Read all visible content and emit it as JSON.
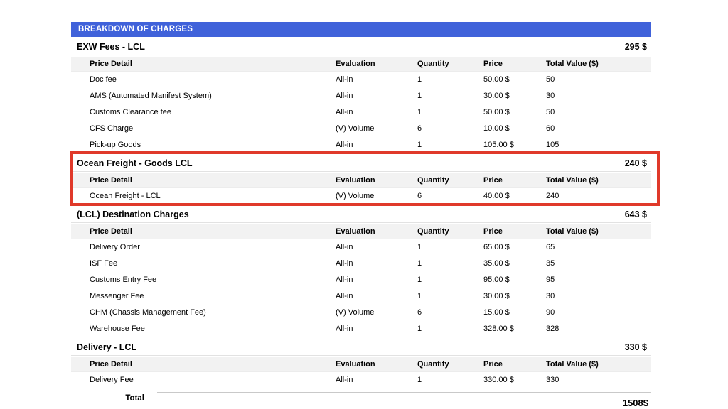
{
  "banner": {
    "title": "BREAKDOWN OF CHARGES"
  },
  "columns": [
    "Price Detail",
    "Evaluation",
    "Quantity",
    "Price",
    "Total Value ($)"
  ],
  "sections": [
    {
      "title": "EXW Fees - LCL",
      "amount": "295 $",
      "highlighted": false,
      "rows": [
        [
          "Doc fee",
          "All-in",
          "1",
          "50.00 $",
          "50"
        ],
        [
          "AMS (Automated Manifest System)",
          "All-in",
          "1",
          "30.00 $",
          "30"
        ],
        [
          "Customs Clearance fee",
          "All-in",
          "1",
          "50.00 $",
          "50"
        ],
        [
          "CFS Charge",
          "(V) Volume",
          "6",
          "10.00 $",
          "60"
        ],
        [
          "Pick-up Goods",
          "All-in",
          "1",
          "105.00 $",
          "105"
        ]
      ]
    },
    {
      "title": "Ocean Freight - Goods LCL",
      "amount": "240 $",
      "highlighted": true,
      "rows": [
        [
          "Ocean Freight - LCL",
          "(V) Volume",
          "6",
          "40.00 $",
          "240"
        ]
      ]
    },
    {
      "title": "(LCL) Destination Charges",
      "amount": "643 $",
      "highlighted": false,
      "rows": [
        [
          "Delivery Order",
          "All-in",
          "1",
          "65.00 $",
          "65"
        ],
        [
          "ISF Fee",
          "All-in",
          "1",
          "35.00 $",
          "35"
        ],
        [
          "Customs Entry Fee",
          "All-in",
          "1",
          "95.00 $",
          "95"
        ],
        [
          "Messenger Fee",
          "All-in",
          "1",
          "30.00 $",
          "30"
        ],
        [
          "CHM (Chassis Management Fee)",
          "(V) Volume",
          "6",
          "15.00 $",
          "90"
        ],
        [
          "Warehouse Fee",
          "All-in",
          "1",
          "328.00 $",
          "328"
        ]
      ]
    },
    {
      "title": "Delivery - LCL",
      "amount": "330 $",
      "highlighted": false,
      "rows": [
        [
          "Delivery Fee",
          "All-in",
          "1",
          "330.00 $",
          "330"
        ]
      ]
    }
  ],
  "total": {
    "label": "Total",
    "value": "1508$"
  },
  "colors": {
    "banner_blue": "#4062DA",
    "highlight_red": "#E0392A",
    "header_row_bg": "#F2F2F2"
  }
}
